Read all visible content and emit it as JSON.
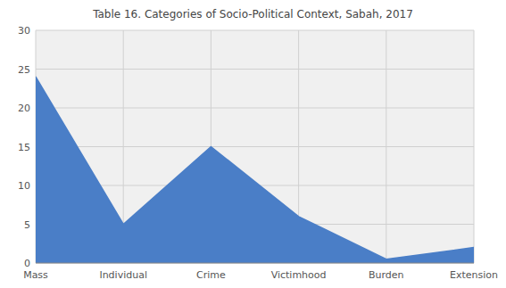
{
  "chart_data": {
    "type": "area",
    "title": "Table 16. Categories of Socio-Political Context, Sabah, 2017",
    "categories": [
      "Mass",
      "Individual",
      "Crime",
      "Victimhood",
      "Burden",
      "Extension"
    ],
    "values": [
      24,
      5,
      15,
      6,
      0.5,
      2
    ],
    "color": "#4a7ec7",
    "ylim": [
      0,
      30
    ],
    "yticks": [
      0,
      5,
      10,
      15,
      20,
      25,
      30
    ],
    "grid": true
  }
}
